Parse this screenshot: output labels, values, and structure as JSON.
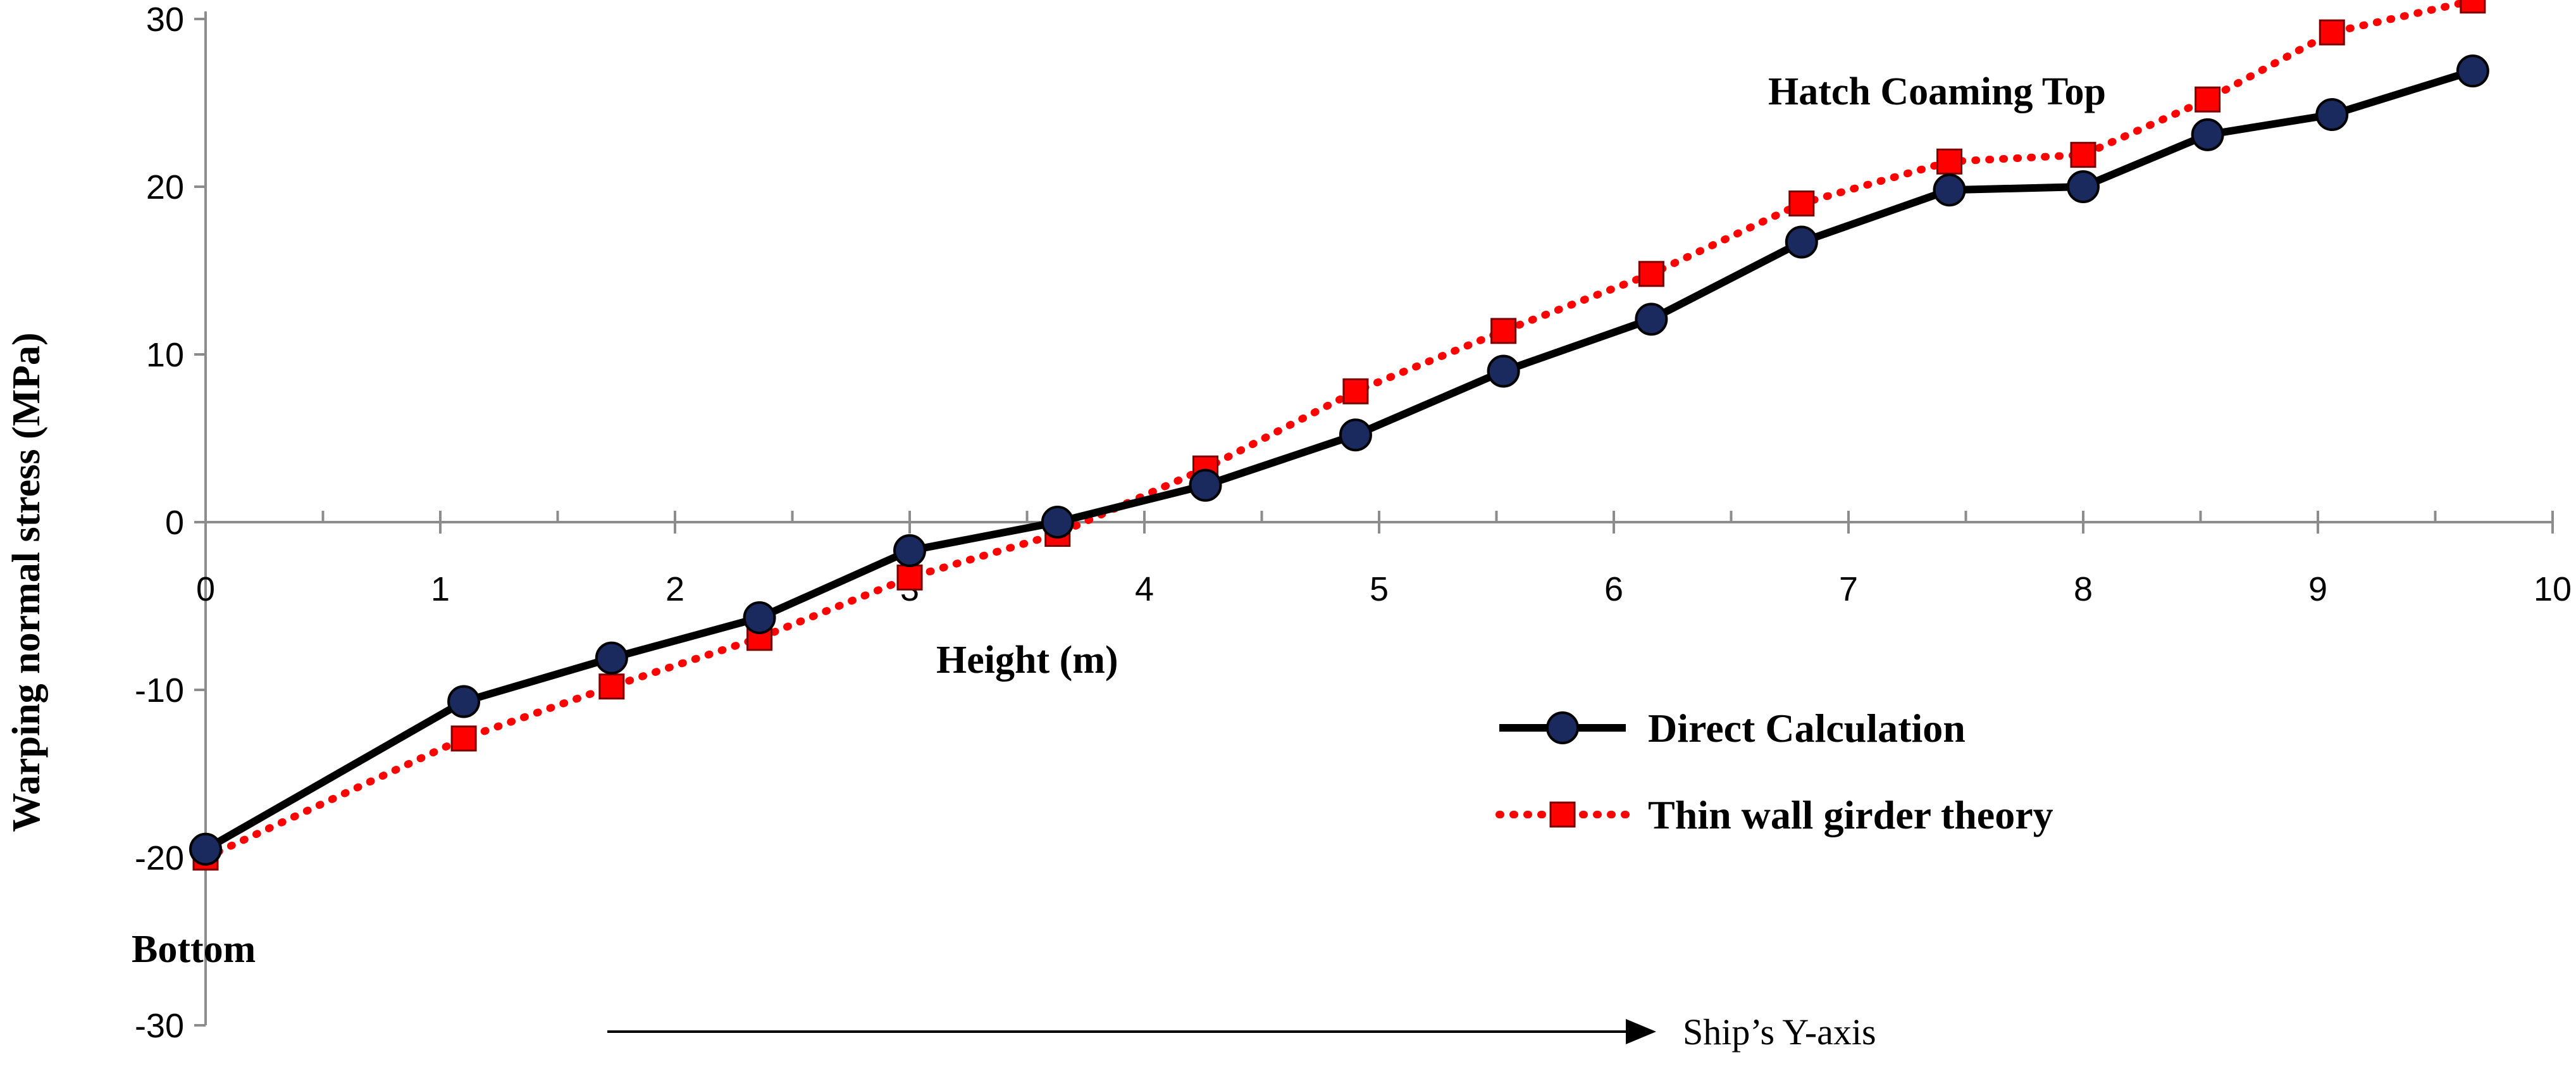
{
  "chart_data": {
    "type": "line",
    "title": "",
    "xlabel": "Height (m)",
    "ylabel": "Warping normal stress (MPa)",
    "xlim": [
      0,
      10
    ],
    "ylim": [
      -30,
      30
    ],
    "x_ticks": [
      "0",
      "1",
      "2",
      "3",
      "4",
      "5",
      "6",
      "7",
      "8",
      "9",
      "10"
    ],
    "y_ticks": [
      "-30",
      "-20",
      "-10",
      "0",
      "10",
      "20",
      "30"
    ],
    "grid": false,
    "legend_position": "right",
    "series": [
      {
        "name": "Direct Calculation",
        "color": "#000000",
        "marker_color": "#1a2a5e",
        "marker": "circle",
        "line_style": "solid",
        "x": [
          0,
          1.1,
          1.73,
          2.36,
          3.0,
          3.63,
          4.26,
          4.9,
          5.53,
          6.16,
          6.8,
          7.43,
          8.0,
          8.53,
          9.06,
          9.66
        ],
        "y": [
          -19.5,
          -10.7,
          -8.1,
          -5.7,
          -1.7,
          0,
          2.2,
          5.2,
          9.0,
          12.1,
          16.7,
          19.8,
          20.0,
          23.1,
          24.3,
          26.9
        ]
      },
      {
        "name": "Thin wall girder theory",
        "color": "#ff0000",
        "marker_color": "#ff0000",
        "marker": "square",
        "line_style": "dotted",
        "x": [
          0,
          1.1,
          1.73,
          2.36,
          3.0,
          3.63,
          4.26,
          4.9,
          5.53,
          6.16,
          6.8,
          7.43,
          8.0,
          8.53,
          9.06,
          9.66
        ],
        "y": [
          -20.0,
          -12.9,
          -9.8,
          -6.9,
          -3.3,
          -0.7,
          3.2,
          7.8,
          11.4,
          14.8,
          19.0,
          21.5,
          21.9,
          25.2,
          29.2,
          31.1
        ]
      }
    ],
    "annotations": {
      "top": "Hatch Coaming Top",
      "bottom": "Bottom",
      "arrow": "Ship’s Y-axis"
    }
  }
}
